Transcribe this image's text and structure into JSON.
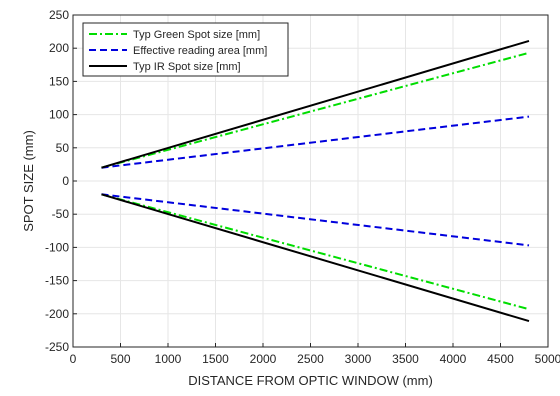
{
  "chart_data": {
    "type": "line",
    "xlabel": "DISTANCE FROM OPTIC WINDOW (mm)",
    "ylabel": "SPOT SIZE (mm)",
    "xlim": [
      0,
      5000
    ],
    "ylim": [
      -250,
      250
    ],
    "xticks": [
      0,
      500,
      1000,
      1500,
      2000,
      2500,
      3000,
      3500,
      4000,
      4500,
      5000
    ],
    "yticks": [
      -250,
      -200,
      -150,
      -100,
      -50,
      0,
      50,
      100,
      150,
      200,
      250
    ],
    "grid": true,
    "legend_position": "top-left",
    "series": [
      {
        "name": "Typ Green Spot size [mm]",
        "color": "#00dd00",
        "style": "dash-dot",
        "x": [
          300,
          4800
        ],
        "y_upper": [
          20,
          193
        ],
        "y_lower": [
          -20,
          -193
        ]
      },
      {
        "name": "Effective reading area [mm]",
        "color": "#0000dd",
        "style": "dashed",
        "x": [
          300,
          4800
        ],
        "y_upper": [
          20,
          97
        ],
        "y_lower": [
          -20,
          -97
        ]
      },
      {
        "name": "Typ IR Spot size [mm]",
        "color": "#000000",
        "style": "solid",
        "x": [
          300,
          4800
        ],
        "y_upper": [
          20,
          211
        ],
        "y_lower": [
          -20,
          -211
        ]
      }
    ]
  }
}
